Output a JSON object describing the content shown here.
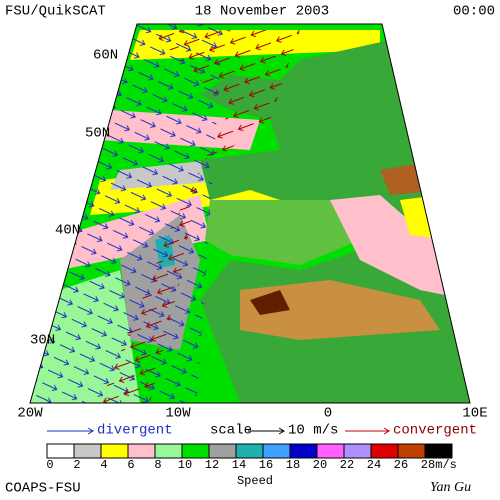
{
  "header": {
    "left": "FSU/QuikSCAT",
    "center": "18 November 2003",
    "right": "00:00"
  },
  "map": {
    "lat_labels": [
      "60N",
      "50N",
      "40N",
      "30N"
    ],
    "lon_labels": [
      "20W",
      "10W",
      "0",
      "10E"
    ]
  },
  "legend": {
    "divergent": "divergent",
    "scale": "scale",
    "scale_value": "10 m/s",
    "convergent": "convergent"
  },
  "colorbar": {
    "title": "Speed",
    "unit": "m/s",
    "ticks": [
      0,
      2,
      4,
      6,
      8,
      10,
      12,
      14,
      16,
      18,
      20,
      22,
      24,
      26,
      28
    ],
    "colors": [
      "#ffffff",
      "#c8c8c8",
      "#ffff00",
      "#ffc0cb",
      "#98f898",
      "#00e000",
      "#a0a0a0",
      "#20b0b0",
      "#40a0ff",
      "#0000c8",
      "#ff60ff",
      "#b090ff",
      "#e00000",
      "#c04000",
      "#000000"
    ]
  },
  "footer": {
    "left": "COAPS-FSU",
    "right": "Yan Gu"
  }
}
